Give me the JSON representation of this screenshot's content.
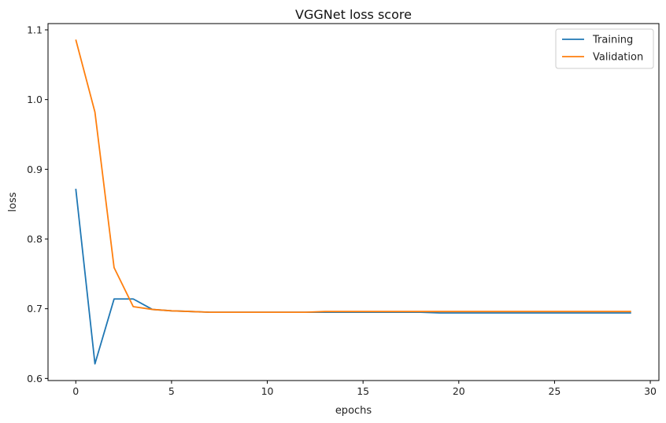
{
  "chart_data": {
    "type": "line",
    "title": "VGGNet loss score",
    "xlabel": "epochs",
    "ylabel": "loss",
    "xlim": [
      -1.45,
      30.45
    ],
    "ylim": [
      0.597,
      1.109
    ],
    "xticks": [
      0,
      5,
      10,
      15,
      20,
      25,
      30
    ],
    "yticks": [
      0.6,
      0.7,
      0.8,
      0.9,
      1.0,
      1.1
    ],
    "xtick_labels": [
      "0",
      "5",
      "10",
      "15",
      "20",
      "25",
      "30"
    ],
    "ytick_labels": [
      "0.6",
      "0.7",
      "0.8",
      "0.9",
      "1.0",
      "1.1"
    ],
    "grid": false,
    "legend_position": "top-right",
    "x": [
      0,
      1,
      2,
      3,
      4,
      5,
      6,
      7,
      8,
      9,
      10,
      11,
      12,
      13,
      14,
      15,
      16,
      17,
      18,
      19,
      20,
      21,
      22,
      23,
      24,
      25,
      26,
      27,
      28,
      29
    ],
    "series": [
      {
        "name": "Training",
        "color": "#1f77b4",
        "values": [
          0.872,
          0.621,
          0.714,
          0.714,
          0.699,
          0.697,
          0.696,
          0.695,
          0.695,
          0.695,
          0.695,
          0.695,
          0.695,
          0.695,
          0.695,
          0.695,
          0.695,
          0.695,
          0.695,
          0.694,
          0.694,
          0.694,
          0.694,
          0.694,
          0.694,
          0.694,
          0.694,
          0.694,
          0.694,
          0.694
        ]
      },
      {
        "name": "Validation",
        "color": "#ff7f0e",
        "values": [
          1.086,
          0.982,
          0.759,
          0.703,
          0.699,
          0.697,
          0.696,
          0.695,
          0.695,
          0.695,
          0.695,
          0.695,
          0.695,
          0.696,
          0.696,
          0.696,
          0.696,
          0.696,
          0.696,
          0.696,
          0.696,
          0.696,
          0.696,
          0.696,
          0.696,
          0.696,
          0.696,
          0.696,
          0.696,
          0.696
        ]
      }
    ]
  }
}
